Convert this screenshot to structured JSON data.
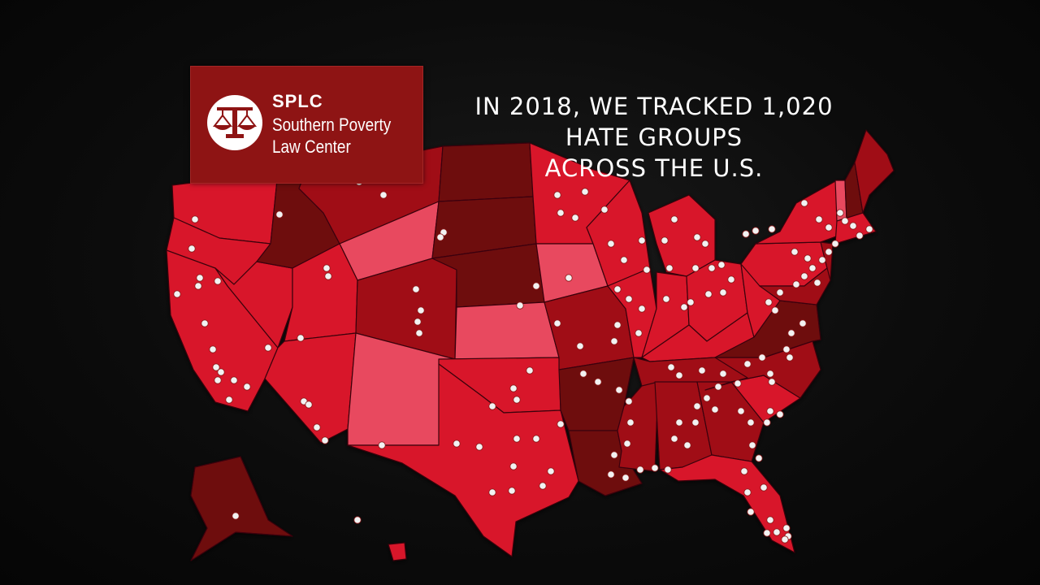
{
  "logo": {
    "acronym": "SPLC",
    "line1": "Southern Poverty",
    "line2": "Law Center",
    "icon": "scales-of-justice-icon"
  },
  "headline": {
    "line1": "IN 2018, WE TRACKED 1,020",
    "line2": "HATE GROUPS",
    "line3": "ACROSS THE U.S."
  },
  "colors": {
    "background": "#0a0a0a",
    "logo_box": "#8e1414",
    "dot": "#f2f2f2",
    "state_light": "#e84a5f",
    "state_mid": "#d8172a",
    "state_dark": "#a00e16",
    "state_darkest": "#6e0a10"
  }
}
